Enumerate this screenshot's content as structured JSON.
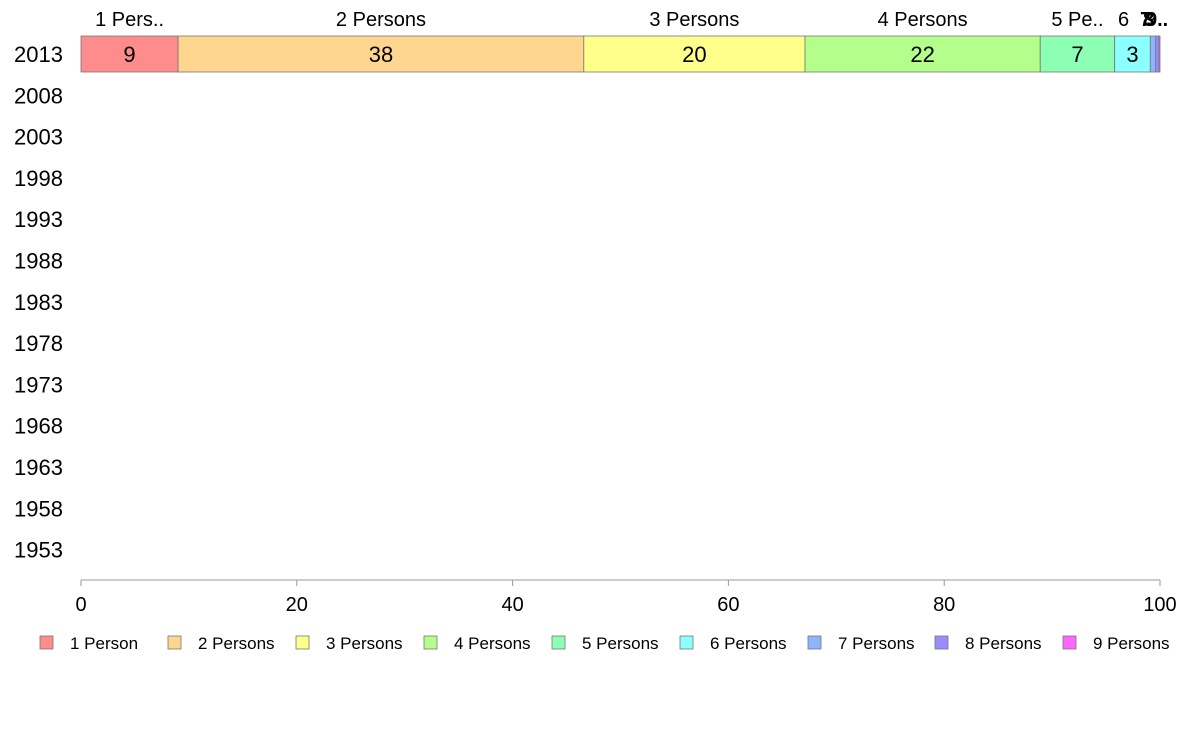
{
  "chart_data": {
    "type": "bar",
    "orientation": "horizontal",
    "stacked": true,
    "title": "",
    "xlabel": "",
    "ylabel": "",
    "xlim": [
      0,
      100
    ],
    "x_ticks": [
      "0",
      "20",
      "40",
      "60",
      "80",
      "100"
    ],
    "categories": [
      "2013",
      "2008",
      "2003",
      "1998",
      "1993",
      "1988",
      "1983",
      "1978",
      "1973",
      "1968",
      "1963",
      "1958",
      "1953"
    ],
    "series": [
      {
        "name": "1 Person",
        "top_label": "1 Pers..",
        "data_label": "9",
        "color": "#ff8c8c",
        "values": [
          9,
          null,
          null,
          null,
          null,
          null,
          null,
          null,
          null,
          null,
          null,
          null,
          null
        ]
      },
      {
        "name": "2 Persons",
        "top_label": "2 Persons",
        "data_label": "38",
        "color": "#ffd68f",
        "values": [
          37.6,
          null,
          null,
          null,
          null,
          null,
          null,
          null,
          null,
          null,
          null,
          null,
          null
        ]
      },
      {
        "name": "3 Persons",
        "top_label": "3 Persons",
        "data_label": "20",
        "color": "#ffff8c",
        "values": [
          20.5,
          null,
          null,
          null,
          null,
          null,
          null,
          null,
          null,
          null,
          null,
          null,
          null
        ]
      },
      {
        "name": "4 Persons",
        "top_label": "4 Persons",
        "data_label": "22",
        "color": "#b4ff8c",
        "values": [
          21.8,
          null,
          null,
          null,
          null,
          null,
          null,
          null,
          null,
          null,
          null,
          null,
          null
        ]
      },
      {
        "name": "5 Persons",
        "top_label": "5 Pe..",
        "data_label": "7",
        "color": "#8cffb4",
        "values": [
          6.9,
          null,
          null,
          null,
          null,
          null,
          null,
          null,
          null,
          null,
          null,
          null,
          null
        ]
      },
      {
        "name": "6 Persons",
        "top_label": "6",
        "data_label": "3",
        "color": "#8cffff",
        "values": [
          3.3,
          null,
          null,
          null,
          null,
          null,
          null,
          null,
          null,
          null,
          null,
          null,
          null
        ]
      },
      {
        "name": "7 Persons",
        "top_label": "7",
        "data_label": "",
        "color": "#8cb4ff",
        "values": [
          0.5,
          null,
          null,
          null,
          null,
          null,
          null,
          null,
          null,
          null,
          null,
          null,
          null
        ]
      },
      {
        "name": "8 Persons",
        "top_label": "8",
        "data_label": "",
        "color": "#998cff",
        "values": [
          0.3,
          null,
          null,
          null,
          null,
          null,
          null,
          null,
          null,
          null,
          null,
          null,
          null
        ]
      },
      {
        "name": "9 Persons",
        "top_label": "9..",
        "data_label": "",
        "color": "#ff66ff",
        "values": [
          0.1,
          null,
          null,
          null,
          null,
          null,
          null,
          null,
          null,
          null,
          null,
          null,
          null
        ]
      }
    ],
    "legend": {
      "placement": "bottom"
    },
    "grid": false
  }
}
